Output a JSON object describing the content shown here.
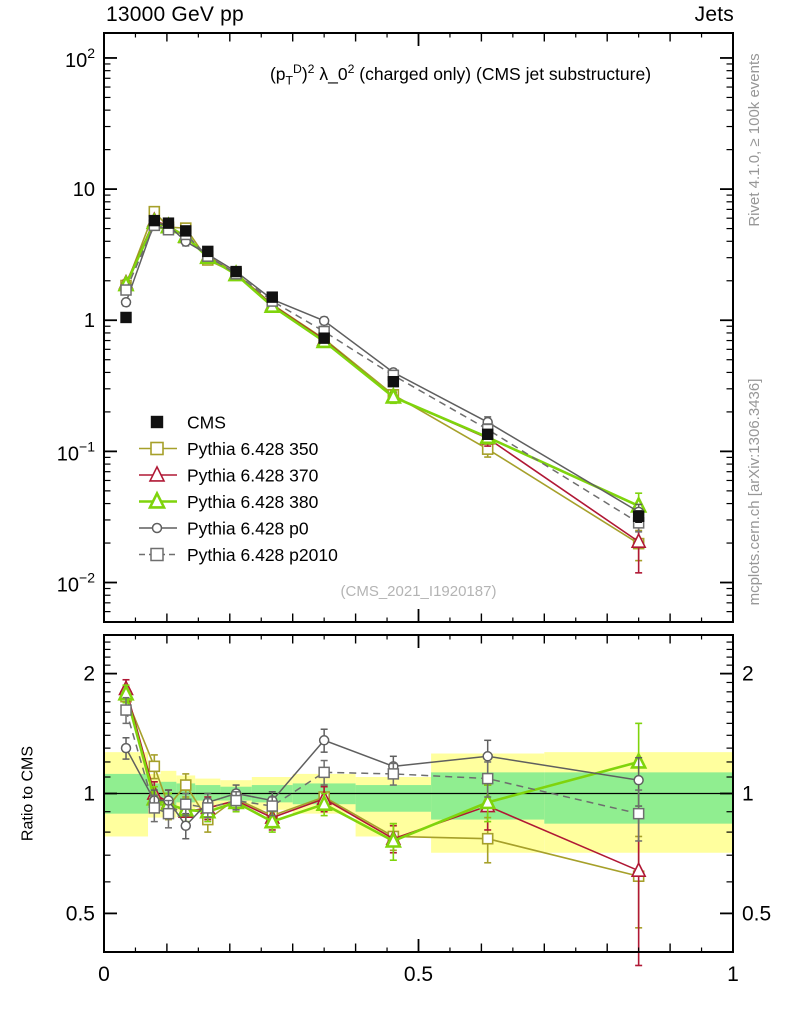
{
  "header": {
    "left_label": "13000 GeV pp",
    "right_label": "Jets"
  },
  "panel_title_parts": [
    {
      "t": "(p",
      "s": "n"
    },
    {
      "t": "T",
      "s": "sub"
    },
    {
      "t": "D",
      "s": "sup"
    },
    {
      "t": ")",
      "s": "n"
    },
    {
      "t": "2",
      "s": "sup"
    },
    {
      "t": " λ_0",
      "s": "n"
    },
    {
      "t": "2",
      "s": "sup"
    },
    {
      "t": " (charged only) (CMS jet substructure)",
      "s": "n"
    }
  ],
  "watermark": "(CMS_2021_I1920187)",
  "side_labels": {
    "top": "Rivet 4.1.0, ≥ 100k events",
    "bottom": "mcplots.cern.ch [arXiv:1306.3436]"
  },
  "ratio_axis_label": "Ratio to CMS",
  "colors": {
    "frame": "#000000",
    "cms": "#111111",
    "p350": "#a6a02a",
    "p370": "#b01835",
    "p380": "#7fd40c",
    "p0": "#5f5f5f",
    "p2010": "#6e6e6e",
    "band_yellow": "#ffff9e",
    "band_green": "#90ee90",
    "watermark": "#b4b4b4",
    "side_text": "#979797"
  },
  "chart_data": {
    "type": "line",
    "title": "(p_T^D)^2 λ_0^2 (charged only) (CMS jet substructure)",
    "top_left": "13000 GeV pp",
    "top_right": "Jets",
    "ratio_ylabel": "Ratio to CMS",
    "xlim": [
      0,
      1
    ],
    "main_ylim": [
      0.005,
      155
    ],
    "ratio_ylim": [
      0.4,
      2.5
    ],
    "grid": false,
    "legend_position": "inside-left-middle",
    "x_major_ticks": [
      {
        "v": 0,
        "label": "0"
      },
      {
        "v": 0.5,
        "label": "0.5"
      },
      {
        "v": 1,
        "label": "1"
      }
    ],
    "main_yticks": [
      {
        "v": 100,
        "base": "10",
        "exp": "2"
      },
      {
        "v": 10,
        "base": "10",
        "exp": null
      },
      {
        "v": 1,
        "base": "1",
        "exp": null
      },
      {
        "v": 0.1,
        "base": "10",
        "exp": "−1"
      },
      {
        "v": 0.01,
        "base": "10",
        "exp": "−2"
      }
    ],
    "ratio_yticks": [
      {
        "v": 2,
        "label": "2"
      },
      {
        "v": 1,
        "label": "1"
      },
      {
        "v": 0.5,
        "label": "0.5"
      }
    ],
    "bin_edges": [
      0,
      0.07,
      0.09,
      0.115,
      0.145,
      0.185,
      0.235,
      0.3,
      0.4,
      0.52,
      0.7,
      1.0
    ],
    "x": [
      0.035,
      0.08,
      0.1025,
      0.13,
      0.165,
      0.21,
      0.2675,
      0.35,
      0.46,
      0.61,
      0.85
    ],
    "cms": {
      "label": "CMS",
      "marker": "square",
      "filled": true,
      "color": "#111111",
      "values": [
        1.05,
        5.75,
        5.5,
        4.8,
        3.35,
        2.35,
        1.5,
        0.73,
        0.34,
        0.135,
        0.032
      ],
      "rel_err": [
        0.04,
        0.02,
        0.02,
        0.02,
        0.02,
        0.02,
        0.02,
        0.03,
        0.04,
        0.06,
        0.1
      ]
    },
    "series": [
      {
        "name": "Pythia 6.428 350",
        "color": "#a6a02a",
        "marker": "square",
        "dash": "solid",
        "lw": 1.6,
        "values": [
          1.84,
          6.73,
          5.12,
          5.04,
          2.88,
          2.28,
          1.32,
          0.72,
          0.27,
          0.104,
          0.0198
        ],
        "ratio": [
          1.75,
          1.17,
          0.93,
          1.05,
          0.86,
          0.97,
          0.88,
          0.98,
          0.78,
          0.77,
          0.62
        ],
        "ratio_err": [
          0.1,
          0.08,
          0.07,
          0.07,
          0.06,
          0.05,
          0.06,
          0.07,
          0.06,
          0.1,
          0.16
        ]
      },
      {
        "name": "Pythia 6.428 370",
        "color": "#b01835",
        "marker": "triangle",
        "dash": "solid",
        "lw": 1.6,
        "values": [
          1.92,
          5.75,
          5.23,
          4.32,
          3.08,
          2.26,
          1.31,
          0.71,
          0.26,
          0.126,
          0.0205
        ],
        "ratio": [
          1.83,
          1.0,
          0.95,
          0.9,
          0.92,
          0.96,
          0.87,
          0.97,
          0.77,
          0.93,
          0.64
        ],
        "ratio_err": [
          0.1,
          0.07,
          0.07,
          0.06,
          0.06,
          0.05,
          0.06,
          0.07,
          0.06,
          0.12,
          0.27
        ]
      },
      {
        "name": "Pythia 6.428 380",
        "color": "#7fd40c",
        "marker": "triangle",
        "dash": "solid",
        "lw": 2.6,
        "values": [
          1.87,
          5.58,
          5.17,
          4.37,
          3.02,
          2.23,
          1.28,
          0.69,
          0.26,
          0.128,
          0.0384
        ],
        "ratio": [
          1.78,
          0.97,
          0.94,
          0.91,
          0.9,
          0.95,
          0.85,
          0.94,
          0.76,
          0.95,
          1.2
        ],
        "ratio_err": [
          0.09,
          0.07,
          0.06,
          0.06,
          0.05,
          0.05,
          0.05,
          0.06,
          0.08,
          0.1,
          0.3
        ]
      },
      {
        "name": "Pythia 6.428 p0",
        "color": "#5f5f5f",
        "marker": "circle",
        "dash": "solid",
        "lw": 1.5,
        "values": [
          1.37,
          5.52,
          5.28,
          3.98,
          3.18,
          2.35,
          1.44,
          0.99,
          0.4,
          0.167,
          0.0346
        ],
        "ratio": [
          1.3,
          0.96,
          0.96,
          0.83,
          0.95,
          1.0,
          0.96,
          1.36,
          1.17,
          1.24,
          1.08
        ],
        "ratio_err": [
          0.08,
          0.06,
          0.06,
          0.06,
          0.05,
          0.05,
          0.05,
          0.09,
          0.07,
          0.12,
          0.15
        ]
      },
      {
        "name": "Pythia 6.428 p2010",
        "color": "#6e6e6e",
        "marker": "square",
        "dash": "dashed",
        "lw": 1.5,
        "values": [
          1.7,
          5.29,
          4.9,
          4.51,
          3.08,
          2.26,
          1.4,
          0.82,
          0.38,
          0.147,
          0.0285
        ],
        "ratio": [
          1.62,
          0.92,
          0.89,
          0.94,
          0.92,
          0.96,
          0.93,
          1.13,
          1.12,
          1.09,
          0.89
        ],
        "ratio_err": [
          0.12,
          0.07,
          0.07,
          0.06,
          0.05,
          0.05,
          0.05,
          0.08,
          0.07,
          0.11,
          0.13
        ]
      }
    ],
    "bands": {
      "green": [
        [
          0.89,
          1.12
        ],
        [
          0.92,
          1.06
        ],
        [
          0.93,
          1.07
        ],
        [
          0.95,
          1.06
        ],
        [
          0.96,
          1.05
        ],
        [
          0.96,
          1.04
        ],
        [
          0.95,
          1.05
        ],
        [
          0.94,
          1.06
        ],
        [
          0.9,
          1.05
        ],
        [
          0.86,
          1.13
        ],
        [
          0.84,
          1.13
        ]
      ],
      "yellow": [
        [
          0.78,
          1.27
        ],
        [
          0.87,
          1.12
        ],
        [
          0.87,
          1.14
        ],
        [
          0.9,
          1.11
        ],
        [
          0.92,
          1.09
        ],
        [
          0.93,
          1.08
        ],
        [
          0.91,
          1.1
        ],
        [
          0.89,
          1.12
        ],
        [
          0.78,
          1.1
        ],
        [
          0.71,
          1.26
        ],
        [
          0.71,
          1.27
        ]
      ]
    },
    "legend": {
      "entries": [
        "CMS",
        "Pythia 6.428 350",
        "Pythia 6.428 370",
        "Pythia 6.428 380",
        "Pythia 6.428 p0",
        "Pythia 6.428 p2010"
      ]
    }
  }
}
